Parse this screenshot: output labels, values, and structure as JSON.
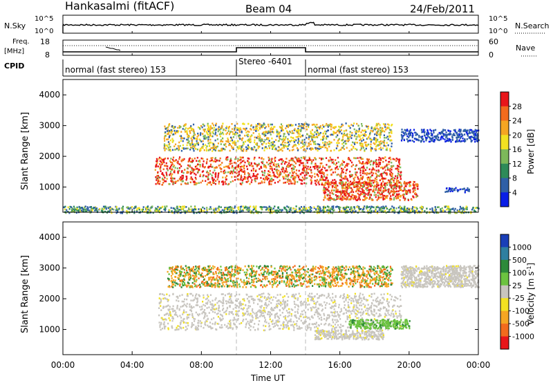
{
  "header": {
    "station": "Hankasalmi (fitACF)",
    "beam": "Beam 04",
    "date": "24/Feb/2011"
  },
  "noise_panel": {
    "left_label": "N.Sky",
    "right_label": "N.Search",
    "left_ticks": [
      "10^5",
      "10^0"
    ],
    "right_ticks": [
      "10^5",
      "10^0"
    ]
  },
  "freq_panel": {
    "left_label_line1": "Freq.",
    "left_label_line2": "[MHz]",
    "left_ticks": [
      "18",
      "8"
    ],
    "right_label": "Nave",
    "right_ticks": [
      "60",
      "0"
    ]
  },
  "cpid": {
    "label": "CPID",
    "segments": [
      {
        "start": 0.0,
        "end": 10.0,
        "text": "normal (fast stereo) 153"
      },
      {
        "start": 10.0,
        "end": 14.0,
        "text": "Stereo -6401"
      },
      {
        "start": 14.0,
        "end": 24.0,
        "text": "normal (fast stereo) 153"
      }
    ]
  },
  "x_axis": {
    "label": "Time UT",
    "ticks": [
      "00:00",
      "04:00",
      "08:00",
      "12:00",
      "16:00",
      "20:00",
      "00:00"
    ],
    "range_hours": [
      0,
      24
    ]
  },
  "power_panel": {
    "ylabel": "Slant Range [km]",
    "yticks": [
      "1000",
      "2000",
      "3000",
      "4000"
    ],
    "colorbar_label": "Power [dB]",
    "colorbar_ticks": [
      "4",
      "8",
      "12",
      "16",
      "20",
      "24",
      "28"
    ],
    "colors": [
      "#0a1ee6",
      "#2f5fa6",
      "#2e8a58",
      "#7db85a",
      "#f2e222",
      "#f5a623",
      "#f26b1d",
      "#e8161a"
    ]
  },
  "velocity_panel": {
    "ylabel": "Slant Range [km]",
    "yticks": [
      "1000",
      "2000",
      "3000",
      "4000"
    ],
    "colorbar_label": "Velocity [m s^-1]",
    "colorbar_ticks": [
      "1000",
      "500",
      "100",
      "25",
      "-25",
      "-100",
      "-500",
      "-1000"
    ],
    "colors": [
      "#1a3fb8",
      "#2f7fa0",
      "#2e8a3a",
      "#6cc340",
      "#c8c5bf",
      "#f2e222",
      "#f5a623",
      "#f26b1d",
      "#e8161a"
    ]
  },
  "chart_data": {
    "type": "heatmap",
    "title": "Hankasalmi (fitACF)",
    "subtitle": "Beam 04",
    "date": "24/Feb/2011",
    "xlabel": "Time UT",
    "ylabel": "Slant Range [km]",
    "xlim_hours": [
      0,
      24
    ],
    "ylim_km": [
      180,
      4500
    ],
    "power_colorbar": {
      "label": "Power [dB]",
      "ticks": [
        4,
        8,
        12,
        16,
        20,
        24,
        28
      ]
    },
    "velocity_colorbar": {
      "label": "Velocity [m s^-1]",
      "ticks": [
        1000,
        500,
        100,
        25,
        -25,
        -100,
        -500,
        -1000
      ]
    },
    "power_regions": [
      {
        "t0": 0.0,
        "t1": 24.0,
        "r0": 180,
        "r1": 400,
        "level": "low-scatter"
      },
      {
        "t0": 5.3,
        "t1": 19.5,
        "r0": 1100,
        "r1": 2000,
        "level": "strong"
      },
      {
        "t0": 5.8,
        "t1": 19.0,
        "r0": 2200,
        "r1": 3100,
        "level": "medium"
      },
      {
        "t0": 15.0,
        "t1": 20.5,
        "r0": 600,
        "r1": 1200,
        "level": "strong"
      },
      {
        "t0": 19.5,
        "t1": 24.0,
        "r0": 2500,
        "r1": 2900,
        "level": "weak"
      },
      {
        "t0": 22.0,
        "t1": 23.5,
        "r0": 850,
        "r1": 1000,
        "level": "weak"
      }
    ],
    "velocity_regions": [
      {
        "t0": 5.5,
        "t1": 19.5,
        "r0": 1000,
        "r1": 2200,
        "value": 0
      },
      {
        "t0": 6.0,
        "t1": 19.0,
        "r0": 2400,
        "r1": 3100,
        "value": -200
      },
      {
        "t0": 16.5,
        "t1": 20.0,
        "r0": 1050,
        "r1": 1350,
        "value": 60
      },
      {
        "t0": 14.5,
        "t1": 18.5,
        "r0": 700,
        "r1": 1000,
        "value": 0
      },
      {
        "t0": 19.5,
        "t1": 24.0,
        "r0": 2400,
        "r1": 3100,
        "value": 0
      }
    ]
  }
}
